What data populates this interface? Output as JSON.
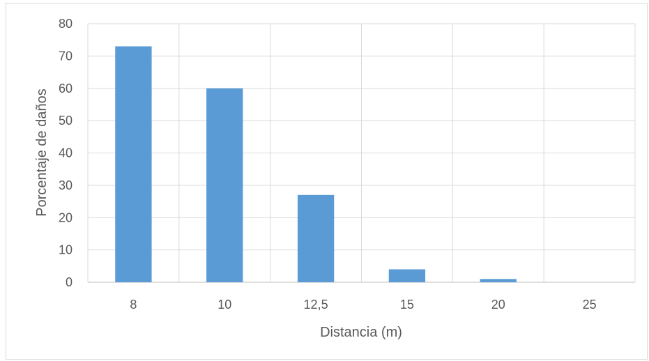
{
  "chart_data": {
    "type": "bar",
    "categories": [
      "8",
      "10",
      "12,5",
      "15",
      "20",
      "25"
    ],
    "values": [
      73,
      60,
      27,
      4,
      1,
      0
    ],
    "xlabel": "Distancia (m)",
    "ylabel": "Porcentaje de daños",
    "ylim": [
      0,
      80
    ],
    "yticks": [
      "0",
      "10",
      "20",
      "30",
      "40",
      "50",
      "60",
      "70",
      "80"
    ],
    "grid": true,
    "legend": "none",
    "bar_color": "#5b9bd5",
    "grid_color": "#d9d9d9"
  }
}
